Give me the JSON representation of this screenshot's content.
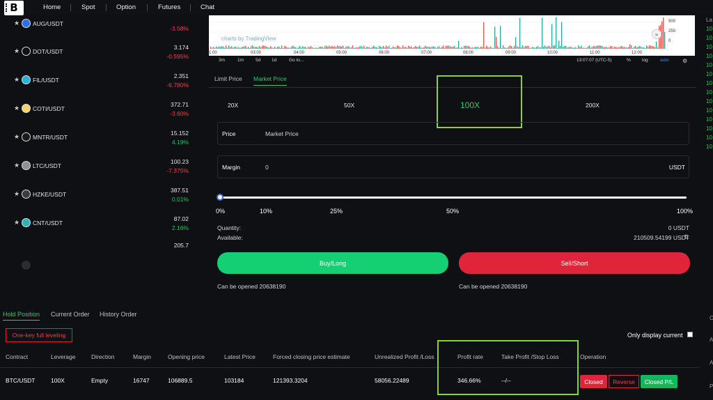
{
  "nav": {
    "logo": "B",
    "items": [
      "Home",
      "Spot",
      "Option",
      "Futures",
      "Chat"
    ]
  },
  "markets": [
    {
      "pair": "AUG/USDT",
      "price": "",
      "change": "-3.58%",
      "dir": "down",
      "coin_color": "#2f6fe4"
    },
    {
      "pair": "DOT/USDT",
      "price": "3.174",
      "change": "-0.595%",
      "dir": "down",
      "coin_color": "#111111"
    },
    {
      "pair": "FIL/USDT",
      "price": "2.351",
      "change": "-6.780%",
      "dir": "down",
      "coin_color": "#27b3d9"
    },
    {
      "pair": "COTI/USDT",
      "price": "372.71",
      "change": "-3.60%",
      "dir": "down",
      "coin_color": "#f5d36b"
    },
    {
      "pair": "MNTR/USDT",
      "price": "15.152",
      "change": "4.19%",
      "dir": "up",
      "coin_color": "#1a1a1a"
    },
    {
      "pair": "LTC/USDT",
      "price": "100.23",
      "change": "-7.375%",
      "dir": "down",
      "coin_color": "#8d8f99"
    },
    {
      "pair": "HZKE/USDT",
      "price": "387.51",
      "change": "0.01%",
      "dir": "up",
      "coin_color": "#3a3b44"
    },
    {
      "pair": "CNT/USDT",
      "price": "87.02",
      "change": "2.16%",
      "dir": "up",
      "coin_color": "#2bb3b9"
    },
    {
      "pair": "",
      "price": "205.7",
      "change": "",
      "dir": "up",
      "coin_color": "#2b2b33"
    }
  ],
  "chart": {
    "watermark": "charts by TradingView",
    "time_labels": [
      "1:00",
      "03:00",
      "04:00",
      "05:00",
      "06:00",
      "07:00",
      "08:00",
      "09:00",
      "10:00",
      "11:00",
      "12:00"
    ],
    "y_labels": [
      "500",
      "250",
      "0"
    ],
    "toolbar": {
      "ranges": [
        "3m",
        "1m",
        "5d",
        "1d",
        "Go to..."
      ],
      "time": "13:07:07 (UTC-5)",
      "pct": "%",
      "log": "log",
      "auto": "auto"
    }
  },
  "order": {
    "tabs": [
      "Limit Price",
      "Market Price"
    ],
    "leverage": [
      "20X",
      "50X",
      "100X",
      "200X"
    ],
    "price_label": "Price",
    "price_value": "Market Price",
    "margin_label": "Margin",
    "margin_value": "0",
    "margin_unit": "USDT",
    "slider_value": 0,
    "slider_labels": [
      "0%",
      "10%",
      "25%",
      "50%",
      "100%"
    ],
    "quantity_label": "Quantity:",
    "quantity_value": "0 USDT",
    "available_label": "Available:",
    "available_value": "210509.54199 USDT",
    "buy_label": "Buy/Long",
    "sell_label": "Sell/Short",
    "can_open_buy": "Can be opened 20638190",
    "can_open_sell": "Can be opened 20638190"
  },
  "right_edge": [
    "La",
    "10",
    "10",
    "10",
    "10",
    "10",
    "10",
    "10",
    "10",
    "10",
    "10",
    "10",
    "10",
    "10",
    "10"
  ],
  "positions": {
    "tabs": [
      "Hold Position",
      "Current Order",
      "History Order"
    ],
    "onekey_label": "One-key full leveling",
    "only_current_label": "Only display current",
    "headers": [
      "Contract",
      "Leverage",
      "Direction",
      "Margin",
      "Opening price",
      "Latest Price",
      "Forced closing price estimate",
      "Unrealized Profit /Loss",
      "Profit rate",
      "Take Profit /Stop Loss",
      "Operation"
    ],
    "row": {
      "contract": "BTC/USDT",
      "leverage": "100X",
      "direction": "Empty",
      "margin": "16747",
      "opening_price": "106889.5",
      "latest_price": "103184",
      "forced_close": "121393.3204",
      "unrealized_pl": "58056.22489",
      "profit_rate": "346.66%",
      "tp_sl": "--/--"
    },
    "op_buttons": [
      "Closed",
      "Reverse",
      "Closed P/L"
    ]
  },
  "colors": {
    "green": "#14cf74",
    "red": "#e0243a",
    "highlight": "#8ad33f"
  }
}
